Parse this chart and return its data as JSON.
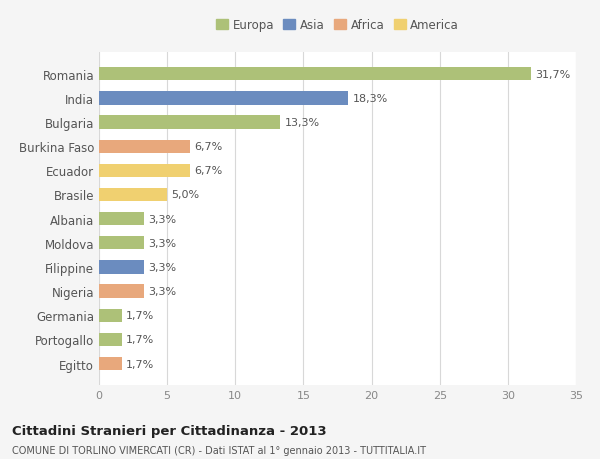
{
  "categories": [
    "Romania",
    "India",
    "Bulgaria",
    "Burkina Faso",
    "Ecuador",
    "Brasile",
    "Albania",
    "Moldova",
    "Filippine",
    "Nigeria",
    "Germania",
    "Portogallo",
    "Egitto"
  ],
  "values": [
    31.7,
    18.3,
    13.3,
    6.7,
    6.7,
    5.0,
    3.3,
    3.3,
    3.3,
    3.3,
    1.7,
    1.7,
    1.7
  ],
  "labels": [
    "31,7%",
    "18,3%",
    "13,3%",
    "6,7%",
    "6,7%",
    "5,0%",
    "3,3%",
    "3,3%",
    "3,3%",
    "3,3%",
    "1,7%",
    "1,7%",
    "1,7%"
  ],
  "colors": [
    "#adc178",
    "#6b8cbf",
    "#adc178",
    "#e8a87c",
    "#f0d070",
    "#f0d070",
    "#adc178",
    "#adc178",
    "#6b8cbf",
    "#e8a87c",
    "#adc178",
    "#adc178",
    "#e8a87c"
  ],
  "legend_labels": [
    "Europa",
    "Asia",
    "Africa",
    "America"
  ],
  "legend_colors": [
    "#adc178",
    "#6b8cbf",
    "#e8a87c",
    "#f0d070"
  ],
  "title": "Cittadini Stranieri per Cittadinanza - 2013",
  "subtitle": "COMUNE DI TORLINO VIMERCATI (CR) - Dati ISTAT al 1° gennaio 2013 - TUTTITALIA.IT",
  "xlim": [
    0,
    35
  ],
  "xticks": [
    0,
    5,
    10,
    15,
    20,
    25,
    30,
    35
  ],
  "background_color": "#f5f5f5",
  "plot_background": "#ffffff",
  "grid_color": "#d8d8d8"
}
